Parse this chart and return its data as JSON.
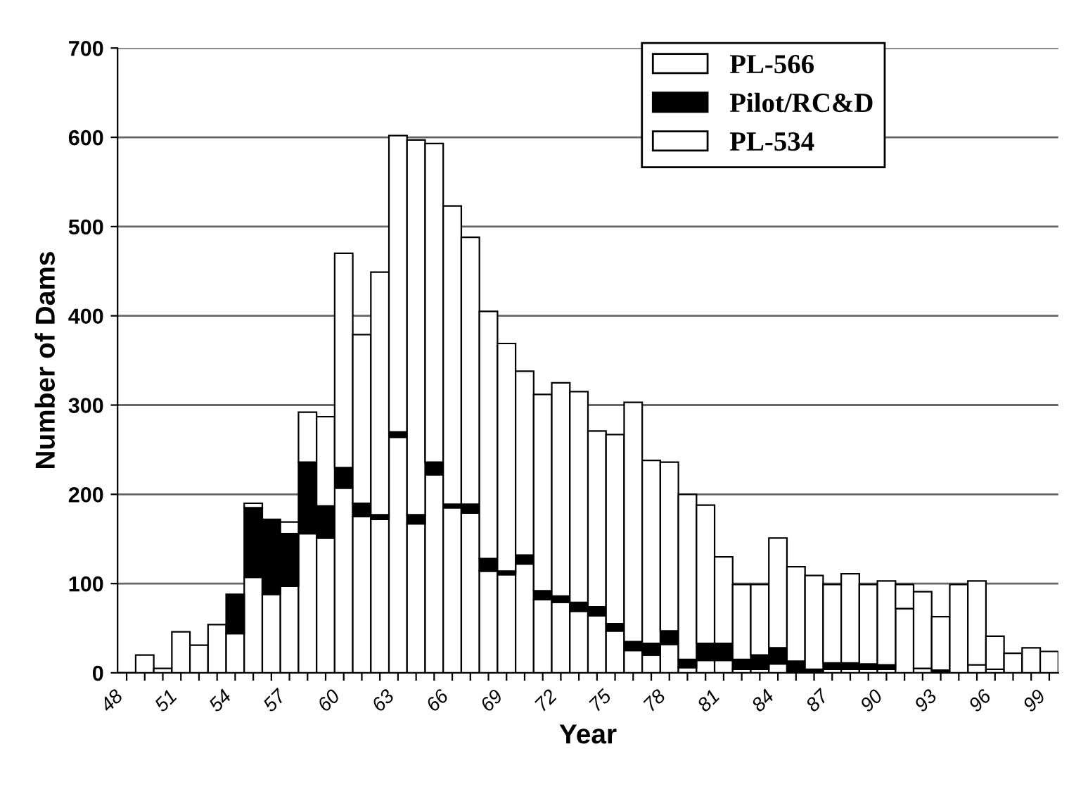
{
  "chart_data": {
    "type": "bar",
    "stacked": true,
    "xlabel": "Year",
    "ylabel": "Number of Dams",
    "categories": [
      "48",
      null,
      null,
      "51",
      null,
      null,
      "54",
      null,
      null,
      "57",
      null,
      null,
      "60",
      null,
      null,
      "63",
      null,
      null,
      "66",
      null,
      null,
      "69",
      null,
      null,
      "72",
      null,
      null,
      "75",
      null,
      null,
      "78",
      null,
      null,
      "81",
      null,
      null,
      "84",
      null,
      null,
      "87",
      null,
      null,
      "90",
      null,
      null,
      "93",
      null,
      null,
      "96",
      null,
      null,
      "99"
    ],
    "series": [
      {
        "name": "PL-534",
        "color": "#ffffff",
        "values": [
          0,
          20,
          5,
          46,
          31,
          54,
          44,
          107,
          88,
          97,
          156,
          151,
          207,
          175,
          172,
          264,
          167,
          222,
          185,
          179,
          114,
          110,
          122,
          82,
          79,
          69,
          64,
          47,
          25,
          20,
          32,
          6,
          14,
          14,
          4,
          4,
          10,
          null,
          null,
          4,
          4,
          4,
          4,
          72,
          5,
          0,
          0,
          9,
          4,
          null,
          0,
          0
        ]
      },
      {
        "name": "Pilot/RC&D",
        "color": "#000000",
        "values": [
          0,
          0,
          0,
          0,
          0,
          0,
          44,
          78,
          84,
          59,
          80,
          36,
          23,
          15,
          5,
          6,
          10,
          14,
          4,
          10,
          14,
          4,
          10,
          10,
          7,
          10,
          10,
          8,
          10,
          13,
          15,
          9,
          19,
          19,
          11,
          16,
          18,
          13,
          4,
          7,
          7,
          6,
          5,
          0,
          0,
          3,
          0,
          0,
          0,
          0,
          0,
          0
        ]
      },
      {
        "name": "PL-566",
        "color": "#ffffff",
        "values": [
          0,
          0,
          0,
          0,
          0,
          0,
          0,
          5,
          0,
          13,
          56,
          100,
          240,
          189,
          272,
          332,
          420,
          357,
          334,
          299,
          277,
          255,
          206,
          220,
          239,
          236,
          197,
          212,
          268,
          205,
          189,
          185,
          155,
          97,
          84,
          79,
          123,
          106,
          105,
          88,
          100,
          89,
          94,
          27,
          86,
          60,
          99,
          94,
          37,
          22,
          28,
          24
        ]
      }
    ],
    "ylim": [
      0,
      700
    ],
    "yticks": [
      0,
      100,
      200,
      300,
      400,
      500,
      600,
      700
    ],
    "grid": "y",
    "legend": "top right"
  }
}
